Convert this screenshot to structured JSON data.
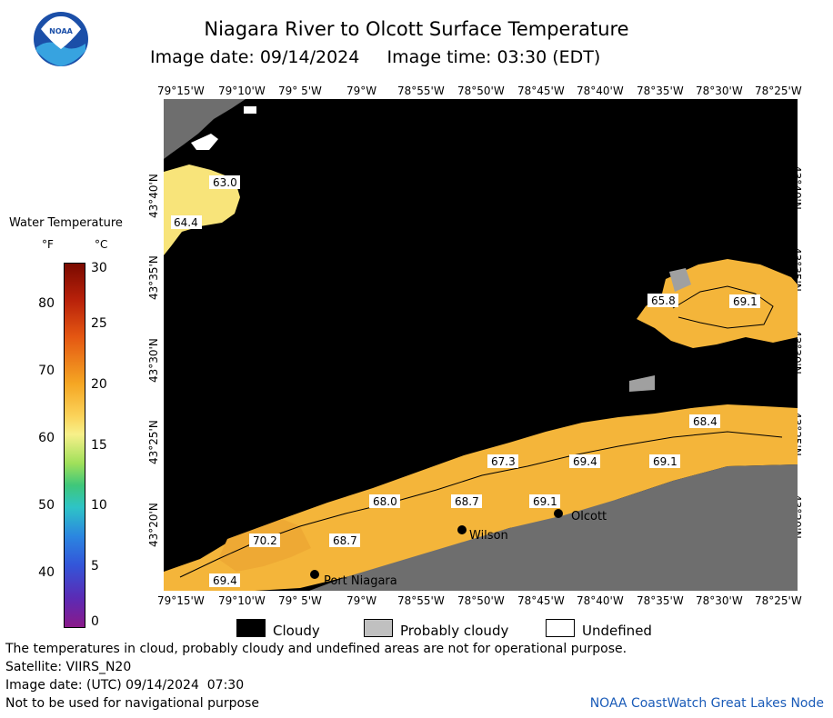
{
  "header": {
    "title": "Niagara River to Olcott Surface Temperature",
    "image_date_label": "Image date: 09/14/2024",
    "image_time_label": "Image time: 03:30 (EDT)"
  },
  "logo": {
    "text": "NOAA"
  },
  "axes": {
    "longitude_ticks": [
      "79°15'W",
      "79°10'W",
      "79° 5'W",
      "79°W",
      "78°55'W",
      "78°50'W",
      "78°45'W",
      "78°40'W",
      "78°35'W",
      "78°30'W",
      "78°25'W"
    ],
    "latitude_ticks": [
      "43°40'N",
      "43°35'N",
      "43°30'N",
      "43°25'N",
      "43°20'N"
    ]
  },
  "map": {
    "temperature_labels": [
      "63.0",
      "64.4",
      "65.8",
      "69.1",
      "68.4",
      "67.3",
      "69.4",
      "69.1",
      "68.0",
      "68.7",
      "69.1",
      "70.2",
      "68.7",
      "69.4"
    ],
    "places": [
      "Wilson",
      "Olcott",
      "Port Niagara"
    ]
  },
  "colorbar": {
    "title": "Water Temperature",
    "unit_f": "°F",
    "unit_c": "°C",
    "f_ticks": [
      "80",
      "70",
      "60",
      "50",
      "40"
    ],
    "c_ticks": [
      "30",
      "25",
      "20",
      "15",
      "10",
      "5",
      "0"
    ]
  },
  "legend": {
    "cloudy": "Cloudy",
    "probably_cloudy": "Probably cloudy",
    "undefined": "Undefined"
  },
  "colors": {
    "cloudy": "#000000",
    "probably_cloudy": "#c0c0c0",
    "undefined": "#ffffff",
    "land": "#6e6e6e",
    "water_warm": "#f4b53a",
    "water_cool": "#f8e070",
    "credit": "#1a5bb8"
  },
  "footer": {
    "disclaimer": "The temperatures in cloud, probably cloudy and undefined areas are not for operational purpose.",
    "satellite": "Satellite: VIIRS_N20",
    "utc_date": "Image date: (UTC) 09/14/2024  07:30",
    "nav_warning": "Not to be used for navigational purpose",
    "credit": "NOAA CoastWatch Great Lakes Node"
  }
}
